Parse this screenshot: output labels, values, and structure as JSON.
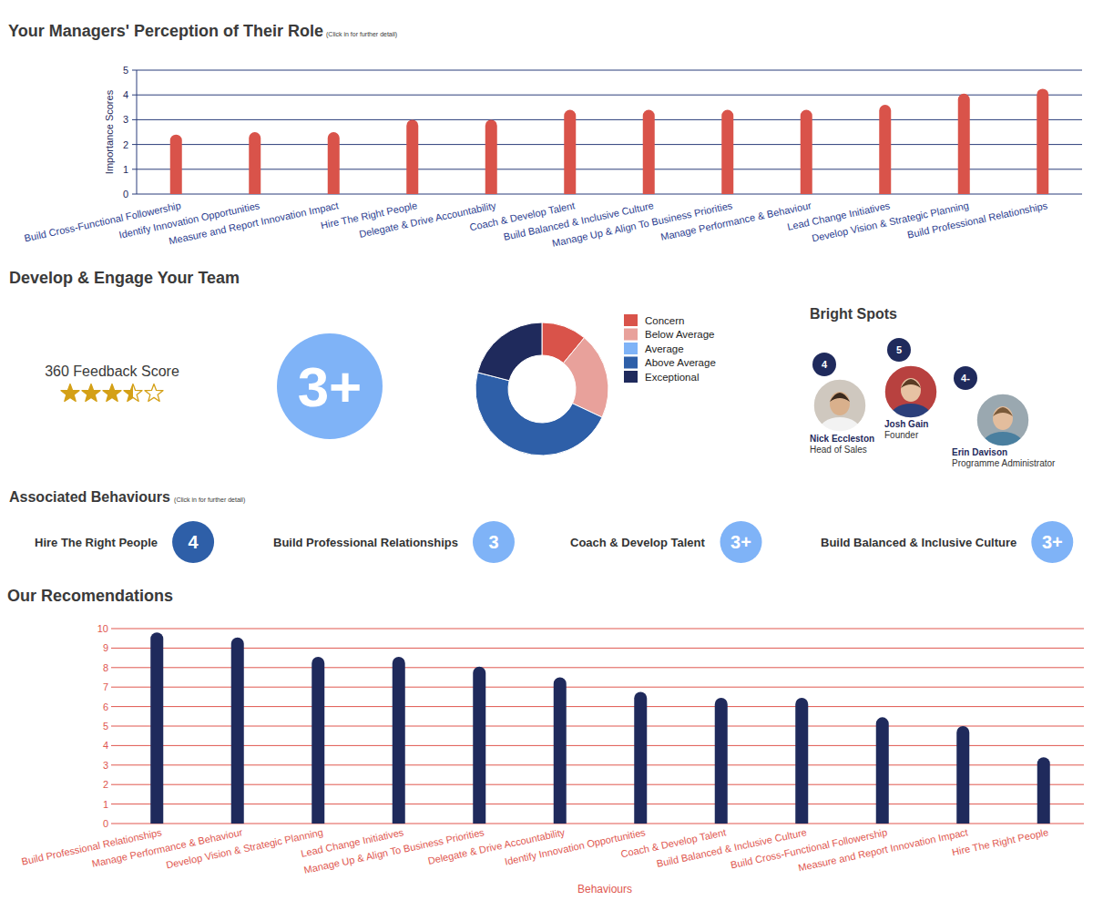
{
  "chart_data": [
    {
      "type": "bar",
      "title": "Your Managers' Perception of Their Role",
      "subtitle": "(Click in for further detail)",
      "ylabel": "Importance Scores",
      "categories": [
        "Build Cross-Functional Followership",
        "Identify Innovation Opportunities",
        "Measure and Report Innovation Impact",
        "Hire The Right People",
        "Delegate & Drive Accountability",
        "Coach & Develop Talent",
        "Build Balanced & Inclusive Culture",
        "Manage Up & Align To Business Priorities",
        "Manage Performance & Behaviour",
        "Lead Change Initiatives",
        "Develop Vision & Strategic Planning",
        "Build Professional Relationships"
      ],
      "values": [
        2.4,
        2.5,
        2.5,
        3.0,
        3.0,
        3.4,
        3.4,
        3.4,
        3.4,
        3.6,
        4.05,
        4.25
      ],
      "color": "#d9534a",
      "ylim": [
        0,
        5
      ],
      "yticks": [
        0,
        1,
        2,
        3,
        4,
        5
      ],
      "grid": true
    },
    {
      "type": "donut",
      "categories": [
        "Concern",
        "Below Average",
        "Average",
        "Above Average",
        "Exceptional"
      ],
      "values": [
        11,
        21,
        0,
        47,
        21
      ],
      "colors": [
        "#d9534a",
        "#e8a19b",
        "#7fb3f7",
        "#2e5fa8",
        "#1f2a5c"
      ],
      "legend": "right"
    },
    {
      "type": "bar",
      "title": "Our Recomendations",
      "xlabel": "Behaviours",
      "categories": [
        "Build Professional Relationships",
        "Manage Performance & Behaviour",
        "Develop Vision & Strategic Planning",
        "Lead Change Initiatives",
        "Manage Up & Align To Business Priorities",
        "Delegate & Drive Accountability",
        "Identify Innovation Opportunities",
        "Coach & Develop Talent",
        "Build Balanced & Inclusive Culture",
        "Build Cross-Functional Followership",
        "Measure and Report Innovation Impact",
        "Hire The Right People"
      ],
      "values": [
        9.8,
        9.55,
        8.55,
        8.55,
        8.05,
        7.5,
        6.75,
        6.45,
        6.45,
        5.45,
        5.0,
        3.4
      ],
      "color": "#1f2a5c",
      "ylim": [
        0,
        10
      ],
      "yticks": [
        0,
        1,
        2,
        3,
        4,
        5,
        6,
        7,
        8,
        9,
        10
      ],
      "grid": true
    }
  ],
  "team": {
    "title": "Develop & Engage Your Team",
    "feedback_label": "360 Feedback Score",
    "stars": 3.5,
    "stars_max": 5,
    "score": "3+"
  },
  "bright_spots": {
    "title": "Bright Spots",
    "people": [
      {
        "score": "4",
        "name": "Nick Eccleston",
        "role": "Head of Sales"
      },
      {
        "score": "5",
        "name": "Josh Gain",
        "role": "Founder"
      },
      {
        "score": "4-",
        "name": "Erin Davison",
        "role": "Programme Administrator"
      }
    ]
  },
  "associated_behaviours": {
    "title": "Associated Behaviours",
    "subtitle": "(Click in for further detail)",
    "items": [
      {
        "name": "Hire The Right People",
        "score": "4",
        "color": "#2e5fa8"
      },
      {
        "name": "Build Professional Relationships",
        "score": "3",
        "color": "#7fb3f7"
      },
      {
        "name": "Coach & Develop Talent",
        "score": "3+",
        "color": "#7fb3f7"
      },
      {
        "name": "Build Balanced & Inclusive Culture",
        "score": "3+",
        "color": "#7fb3f7"
      }
    ]
  }
}
